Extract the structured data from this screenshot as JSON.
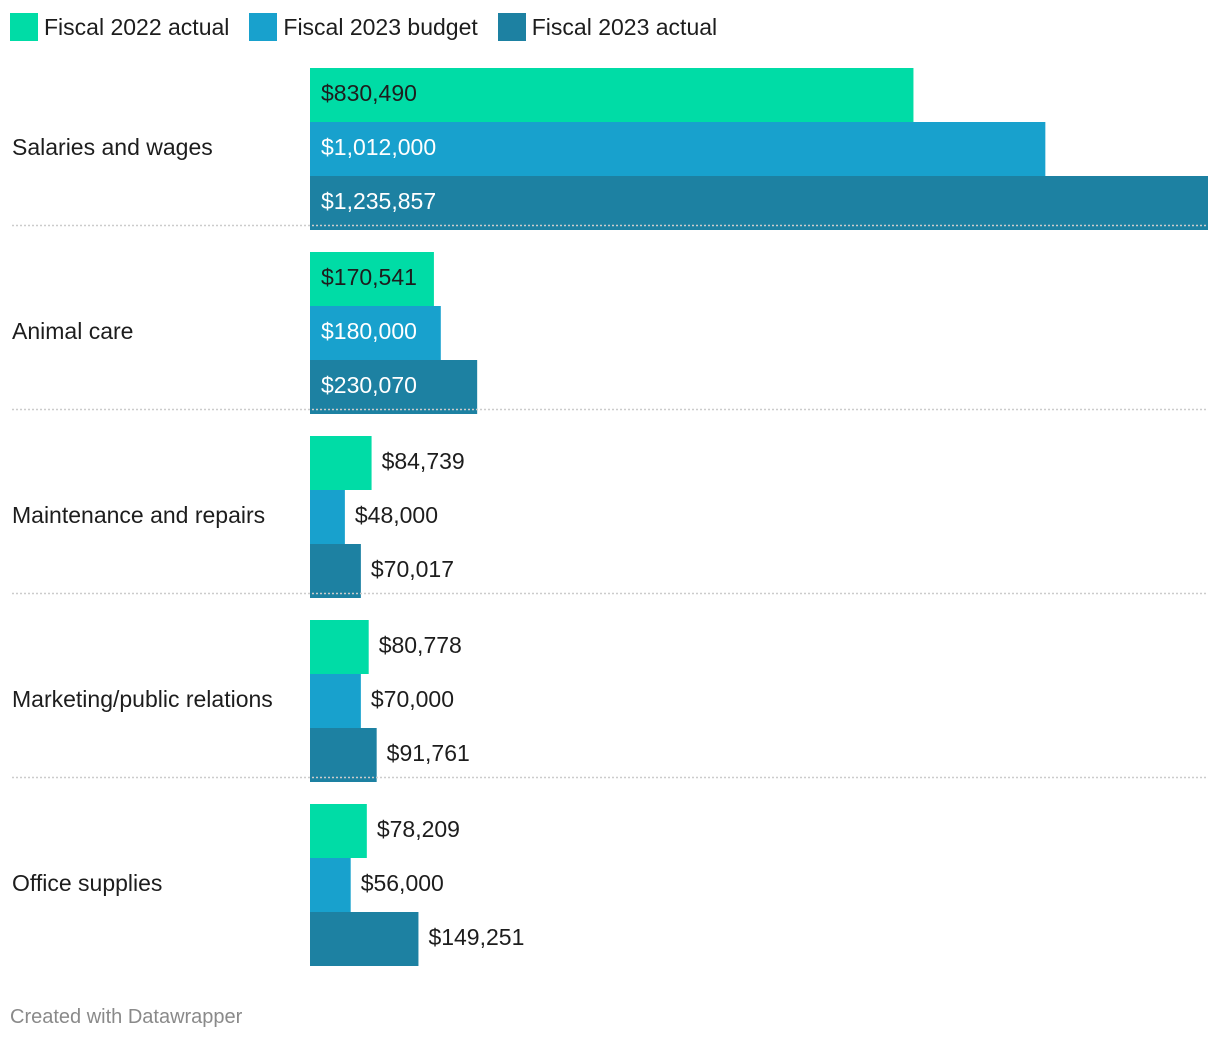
{
  "chart_data": {
    "type": "bar",
    "orientation": "horizontal",
    "categories": [
      "Salaries and wages",
      "Animal care",
      "Maintenance and repairs",
      "Marketing/public relations",
      "Office supplies"
    ],
    "series": [
      {
        "name": "Fiscal 2022 actual",
        "color": "#00dca6",
        "values": [
          830490,
          170541,
          84739,
          80778,
          78209
        ],
        "labels": [
          "$830,490",
          "$170,541",
          "$84,739",
          "$80,778",
          "$78,209"
        ]
      },
      {
        "name": "Fiscal 2023 budget",
        "color": "#18a1cd",
        "values": [
          1012000,
          180000,
          48000,
          70000,
          56000
        ],
        "labels": [
          "$1,012,000",
          "$180,000",
          "$48,000",
          "$70,000",
          "$56,000"
        ]
      },
      {
        "name": "Fiscal 2023 actual",
        "color": "#1d81a2",
        "values": [
          1235857,
          230070,
          70017,
          91761,
          149251
        ],
        "labels": [
          "$1,235,857",
          "$230,070",
          "$70,017",
          "$91,761",
          "$149,251"
        ]
      }
    ],
    "xlim": [
      0,
      1235857
    ],
    "legend_position": "top-left",
    "grid": false
  },
  "footer": {
    "credit": "Created with Datawrapper"
  }
}
